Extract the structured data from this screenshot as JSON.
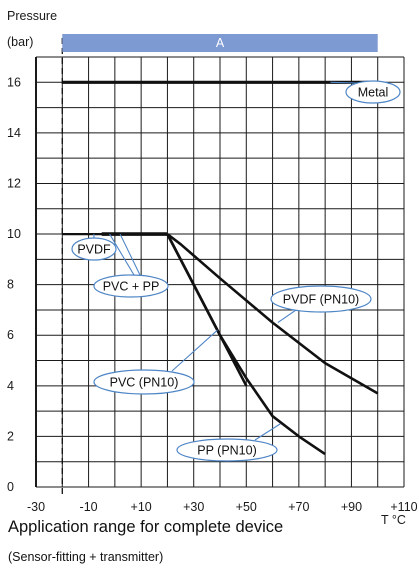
{
  "chart_data": {
    "type": "line",
    "ylabel_line1": "Pressure",
    "ylabel_line2": "(bar)",
    "xunit": "T °C",
    "xlim": [
      -30,
      110
    ],
    "ylim": [
      0,
      17
    ],
    "xticks": [
      -30,
      -10,
      10,
      30,
      50,
      70,
      90,
      110
    ],
    "xtick_labels": [
      "-30",
      "-10",
      "+10",
      "+30",
      "+50",
      "+70",
      "+90",
      "+110"
    ],
    "yticks": [
      0,
      2,
      4,
      6,
      8,
      10,
      12,
      14,
      16
    ],
    "ytick_labels": [
      "0",
      "2",
      "4",
      "6",
      "8",
      "10",
      "12",
      "14",
      "16"
    ],
    "grid": true,
    "dashed_line_x": -20,
    "band": {
      "label": "A",
      "x": [
        -20,
        100
      ],
      "color": "#7d9ad3"
    },
    "series": [
      {
        "name": "Metal",
        "x": [
          -20,
          100
        ],
        "y": [
          16,
          16
        ]
      },
      {
        "name": "PVDF",
        "x": [
          -20,
          20
        ],
        "y": [
          10,
          10
        ]
      },
      {
        "name": "PVC + PP",
        "x": [
          -5,
          20
        ],
        "y": [
          10,
          10
        ]
      },
      {
        "name": "PVDF (PN10)",
        "x": [
          20,
          25,
          40,
          60,
          80,
          100
        ],
        "y": [
          10,
          9.6,
          8.25,
          6.5,
          4.9,
          3.7
        ]
      },
      {
        "name": "PVC (PN10)",
        "x": [
          20,
          50
        ],
        "y": [
          10,
          4
        ]
      },
      {
        "name": "PP (PN10)",
        "x": [
          20,
          30,
          40,
          50,
          60,
          70,
          80
        ],
        "y": [
          10,
          8,
          6,
          4.3,
          2.8,
          2,
          1.3
        ]
      }
    ],
    "callouts": [
      "Metal",
      "PVDF",
      "PVC + PP",
      "PVDF (PN10)",
      "PVC (PN10)",
      "PP (PN10)"
    ]
  },
  "footer": {
    "title": "Application range for complete device",
    "subtitle": "(Sensor-fitting + transmitter)"
  },
  "colors": {
    "line": "#111111",
    "grid": "#1a1a1a",
    "band": "#7d9ad3",
    "callout": "#4f86c6"
  }
}
